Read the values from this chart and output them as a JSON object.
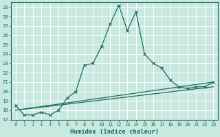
{
  "title": "",
  "xlabel": "Humidex (Indice chaleur)",
  "bg_color": "#c8e8e0",
  "line_color": "#1a6b5a",
  "grid_color": "#ffffff",
  "xlim": [
    -0.5,
    23.5
  ],
  "ylim": [
    17,
    29.5
  ],
  "yticks": [
    17,
    18,
    19,
    20,
    21,
    22,
    23,
    24,
    25,
    26,
    27,
    28,
    29
  ],
  "xticks": [
    0,
    1,
    2,
    3,
    4,
    5,
    6,
    7,
    8,
    9,
    10,
    11,
    12,
    13,
    14,
    15,
    16,
    17,
    18,
    19,
    20,
    21,
    22,
    23
  ],
  "line1_x": [
    0,
    1,
    2,
    3,
    4,
    5,
    6,
    7,
    8,
    9,
    10,
    11,
    12,
    13,
    14,
    15,
    16,
    17,
    18,
    19,
    20,
    21,
    22,
    23
  ],
  "line1_y": [
    18.5,
    17.5,
    17.5,
    17.8,
    17.5,
    18.0,
    19.3,
    20.0,
    22.8,
    23.0,
    24.8,
    27.2,
    29.2,
    26.5,
    28.5,
    24.0,
    23.0,
    22.5,
    21.2,
    20.5,
    20.3,
    20.5,
    20.5,
    21.0
  ],
  "line2_x": [
    0,
    23
  ],
  "line2_y": [
    18.0,
    21.0
  ],
  "line3_x": [
    0,
    23
  ],
  "line3_y": [
    18.0,
    20.5
  ]
}
